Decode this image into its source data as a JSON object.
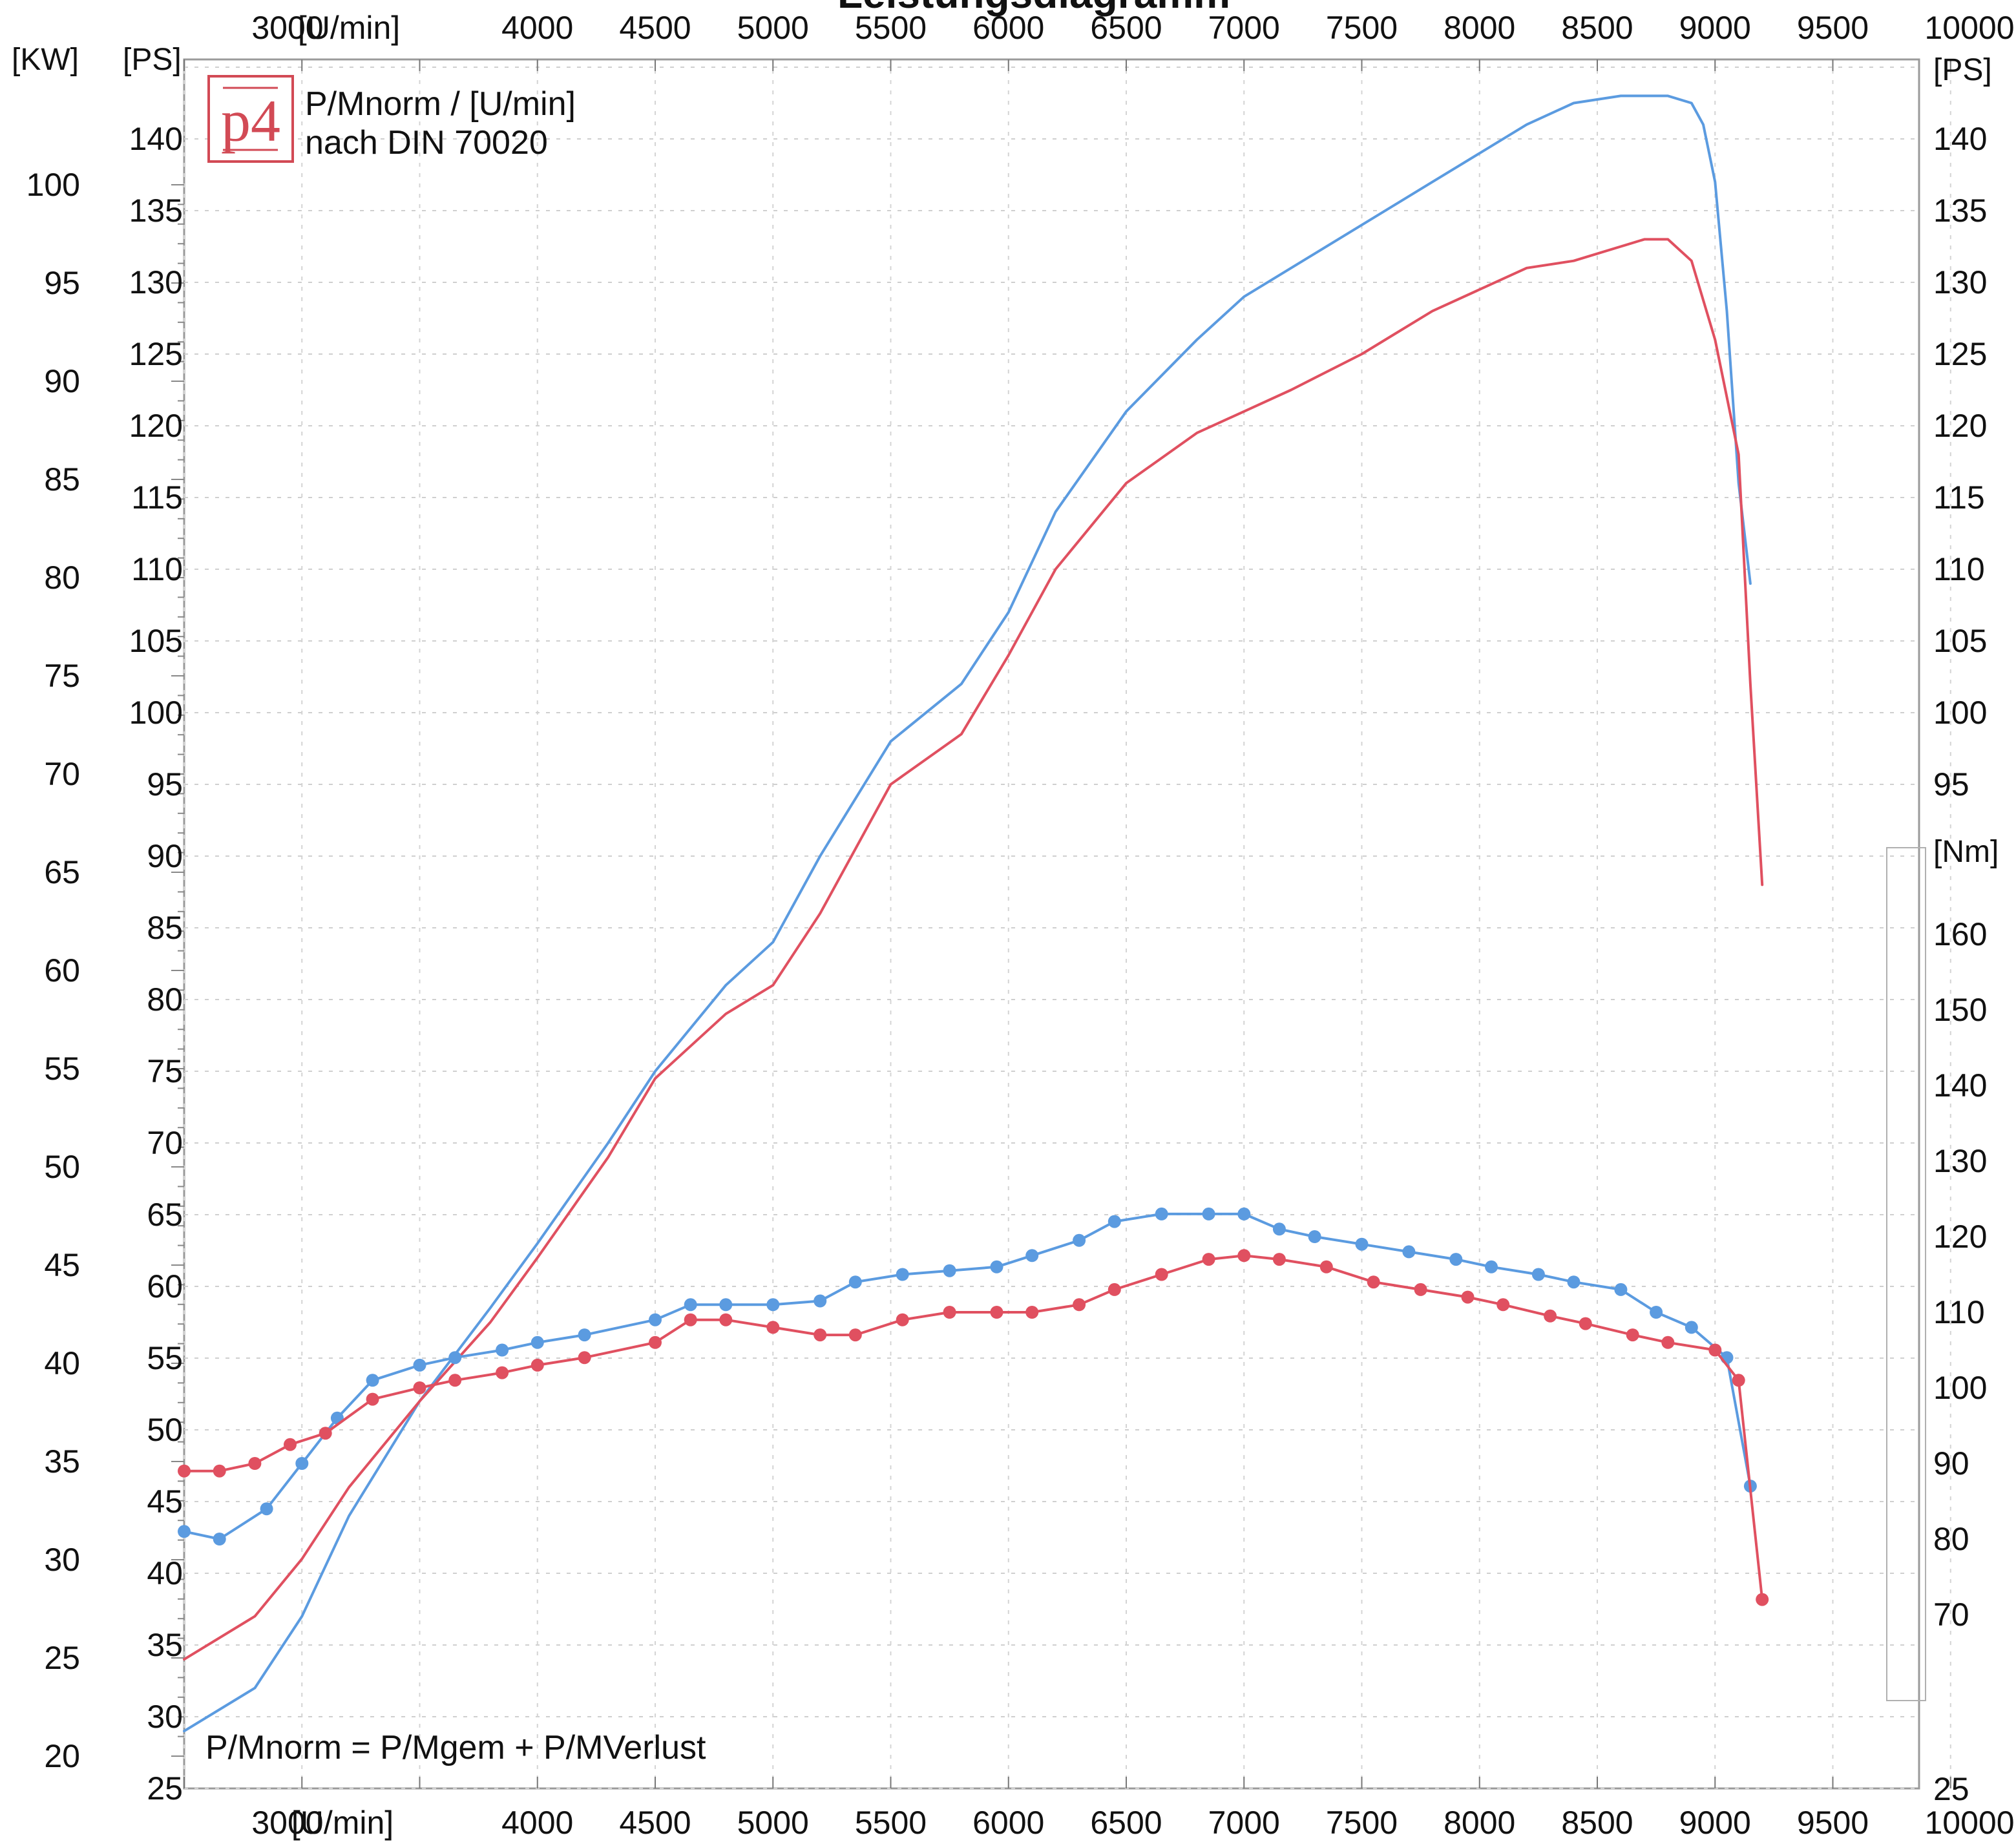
{
  "chart_data": {
    "type": "line",
    "title": "Leistungsdiagramm",
    "xlabel": "[U/min]",
    "x_ticks": [
      3000,
      4000,
      4500,
      5000,
      5500,
      6000,
      6500,
      7000,
      7500,
      8000,
      8500,
      9000,
      9500,
      10000
    ],
    "xlim": [
      2500,
      10000
    ],
    "axes": {
      "kw": {
        "label": "[KW]",
        "ticks": [
          20,
          25,
          30,
          35,
          40,
          45,
          50,
          55,
          60,
          65,
          70,
          75,
          80,
          85,
          90,
          95,
          100
        ]
      },
      "ps_left": {
        "label": "[PS]",
        "ticks": [
          25,
          30,
          35,
          40,
          45,
          50,
          55,
          60,
          65,
          70,
          75,
          80,
          85,
          90,
          95,
          100,
          105,
          110,
          115,
          120,
          125,
          130,
          135,
          140
        ],
        "ylim": [
          25,
          145
        ]
      },
      "ps_right": {
        "label": "[PS]",
        "ticks": [
          25,
          95,
          100,
          105,
          110,
          115,
          120,
          125,
          130,
          135,
          140
        ]
      },
      "nm": {
        "label": "[Nm]",
        "ticks": [
          70,
          80,
          90,
          100,
          110,
          120,
          130,
          140,
          150,
          160
        ]
      }
    },
    "annotations": {
      "legend_line1": "P/Mnorm / [U/min]",
      "legend_line2": "nach DIN 70020",
      "formula": "P/Mnorm = P/Mgem + P/MVerlust",
      "logo": "p4"
    },
    "grid": true,
    "colors": {
      "blue": "#5b9be0",
      "red": "#e05060"
    },
    "series": [
      {
        "kind": "power_ps",
        "color": "blue",
        "x": [
          2500,
          2800,
          3000,
          3200,
          3500,
          3800,
          4000,
          4300,
          4500,
          4600,
          4800,
          5000,
          5200,
          5500,
          5800,
          6000,
          6200,
          6500,
          6800,
          7000,
          7200,
          7500,
          7800,
          8000,
          8200,
          8400,
          8600,
          8800,
          8900,
          8950,
          9000,
          9050,
          9100,
          9150
        ],
        "values": [
          29,
          32,
          37,
          44,
          52,
          58.5,
          63,
          70,
          75,
          77,
          81,
          84,
          90,
          98,
          102,
          107,
          114,
          121,
          126,
          129,
          131,
          134,
          137,
          139,
          141,
          142.5,
          143,
          143,
          142.5,
          141,
          137,
          128,
          116,
          109
        ]
      },
      {
        "kind": "power_ps",
        "color": "red",
        "x": [
          2500,
          2800,
          3000,
          3200,
          3500,
          3800,
          4000,
          4300,
          4500,
          4600,
          4800,
          5000,
          5200,
          5500,
          5800,
          6000,
          6200,
          6500,
          6800,
          7000,
          7200,
          7500,
          7800,
          8000,
          8200,
          8400,
          8600,
          8700,
          8800,
          8900,
          9000,
          9100,
          9150,
          9200
        ],
        "values": [
          34,
          37,
          41,
          46,
          52,
          57.5,
          62,
          69,
          74.5,
          76,
          79,
          81,
          86,
          95,
          98.5,
          104,
          110,
          116,
          119.5,
          121,
          122.5,
          125,
          128,
          129.5,
          131,
          131.5,
          132.5,
          133,
          133,
          131.5,
          126,
          118,
          102,
          88
        ]
      },
      {
        "kind": "torque_nm",
        "color": "blue",
        "x": [
          2500,
          2650,
          2850,
          3000,
          3150,
          3300,
          3500,
          3650,
          3850,
          4000,
          4200,
          4500,
          4650,
          4800,
          5000,
          5200,
          5350,
          5550,
          5750,
          5950,
          6100,
          6300,
          6450,
          6650,
          6850,
          7000,
          7150,
          7300,
          7500,
          7700,
          7900,
          8050,
          8250,
          8400,
          8600,
          8750,
          8900,
          9050,
          9150
        ],
        "values": [
          81,
          80,
          84,
          90,
          96,
          101,
          103,
          104,
          105,
          106,
          107,
          109,
          111,
          111,
          111,
          111.5,
          114,
          115,
          115.5,
          116,
          117.5,
          119.5,
          122,
          123,
          123,
          123,
          121,
          120,
          119,
          118,
          117,
          116,
          115,
          114,
          113,
          110,
          108,
          104,
          87
        ]
      },
      {
        "kind": "torque_nm",
        "color": "red",
        "x": [
          2500,
          2650,
          2800,
          2950,
          3100,
          3300,
          3500,
          3650,
          3850,
          4000,
          4200,
          4500,
          4650,
          4800,
          5000,
          5200,
          5350,
          5550,
          5750,
          5950,
          6100,
          6300,
          6450,
          6650,
          6850,
          7000,
          7150,
          7350,
          7550,
          7750,
          7950,
          8100,
          8300,
          8450,
          8650,
          8800,
          9000,
          9100,
          9200
        ],
        "values": [
          89,
          89,
          90,
          92.5,
          94,
          98.5,
          100,
          101,
          102,
          103,
          104,
          106,
          109,
          109,
          108,
          107,
          107,
          109,
          110,
          110,
          110,
          111,
          113,
          115,
          117,
          117.5,
          117,
          116,
          114,
          113,
          112,
          111,
          109.5,
          108.5,
          107,
          106,
          105,
          101,
          72
        ]
      }
    ]
  }
}
